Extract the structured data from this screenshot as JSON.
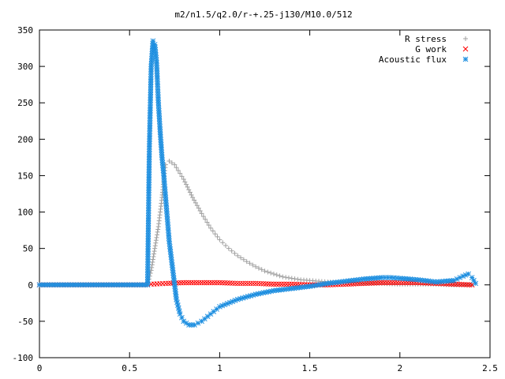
{
  "chart_data": {
    "type": "scatter",
    "title": "m2/n1.5/q2.0/r-+.25-j130/M10.0/512",
    "xlabel": "",
    "ylabel": "",
    "xlim": [
      0,
      2.5
    ],
    "ylim": [
      -100,
      350
    ],
    "x_ticks": [
      "0",
      "0.5",
      "1",
      "1.5",
      "2",
      "2.5"
    ],
    "y_ticks": [
      "350",
      "300",
      "250",
      "200",
      "150",
      "100",
      "50",
      "0",
      "-50",
      "-100"
    ],
    "grid": false,
    "legend_position": "top-right",
    "series": [
      {
        "name": "R stress",
        "marker": "plus",
        "color": "#a0a0a0",
        "x": [
          0.0,
          0.2,
          0.4,
          0.6,
          0.62,
          0.63,
          0.64,
          0.65,
          0.66,
          0.67,
          0.68,
          0.69,
          0.7,
          0.72,
          0.75,
          0.8,
          0.85,
          0.9,
          0.95,
          1.0,
          1.05,
          1.1,
          1.15,
          1.2,
          1.25,
          1.3,
          1.35,
          1.4,
          1.45,
          1.5,
          1.55,
          1.6,
          1.7,
          1.8,
          1.9,
          2.0,
          2.1,
          2.2,
          2.3,
          2.4
        ],
        "y": [
          0,
          0,
          0,
          0,
          20,
          35,
          50,
          65,
          80,
          100,
          120,
          145,
          165,
          170,
          165,
          145,
          120,
          98,
          78,
          62,
          50,
          40,
          32,
          25,
          19,
          15,
          11,
          9,
          7,
          6,
          5,
          4,
          3,
          2,
          2,
          1,
          1,
          1,
          0,
          0
        ]
      },
      {
        "name": "G work",
        "marker": "cross",
        "color": "#ff0000",
        "x": [
          0.0,
          0.3,
          0.6,
          0.62,
          0.7,
          0.8,
          0.9,
          1.0,
          1.1,
          1.2,
          1.3,
          1.4,
          1.5,
          1.6,
          1.7,
          1.8,
          1.9,
          2.0,
          2.1,
          2.2,
          2.3,
          2.4
        ],
        "y": [
          0,
          0,
          0,
          1,
          2,
          3,
          3,
          3,
          2,
          2,
          1,
          1,
          0,
          0,
          1,
          2,
          3,
          3,
          3,
          2,
          1,
          0
        ]
      },
      {
        "name": "Acoustic flux",
        "marker": "star",
        "color": "#1e8fe0",
        "x": [
          0.0,
          0.2,
          0.4,
          0.6,
          0.61,
          0.62,
          0.63,
          0.64,
          0.65,
          0.66,
          0.67,
          0.68,
          0.69,
          0.7,
          0.71,
          0.72,
          0.74,
          0.76,
          0.78,
          0.8,
          0.83,
          0.86,
          0.9,
          0.95,
          1.0,
          1.1,
          1.2,
          1.3,
          1.4,
          1.5,
          1.6,
          1.7,
          1.8,
          1.9,
          1.95,
          2.0,
          2.1,
          2.2,
          2.3,
          2.35,
          2.38,
          2.4,
          2.42
        ],
        "y": [
          0,
          0,
          0,
          0,
          190,
          300,
          335,
          330,
          305,
          250,
          210,
          175,
          150,
          120,
          90,
          60,
          20,
          -20,
          -40,
          -50,
          -55,
          -55,
          -50,
          -40,
          -30,
          -20,
          -13,
          -8,
          -5,
          -2,
          2,
          5,
          8,
          10,
          10,
          9,
          7,
          4,
          6,
          12,
          15,
          10,
          2
        ]
      }
    ]
  }
}
